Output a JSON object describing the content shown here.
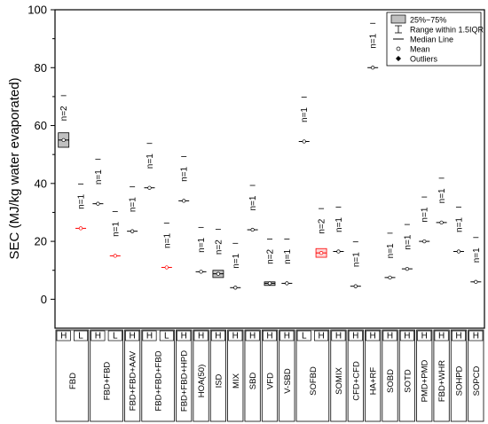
{
  "chart_data": {
    "type": "box",
    "ylabel": "SEC (MJ/kg water evaporated)",
    "ylim": [
      -10,
      100
    ],
    "yticks": [
      0,
      20,
      40,
      60,
      80,
      100
    ],
    "legend": {
      "placement": "top-right",
      "entries": [
        "25%~75%",
        "Range within 1.5IQR",
        "Median Line",
        "Mean",
        "Outliers"
      ]
    },
    "categories": [
      {
        "name": "FBD",
        "modes": [
          "H",
          "L"
        ]
      },
      {
        "name": "FBD+FBD",
        "modes": [
          "H",
          "L"
        ]
      },
      {
        "name": "FBD+FBD+AAV",
        "modes": [
          "H"
        ]
      },
      {
        "name": "FBD+FBD+FBD",
        "modes": [
          "H",
          "L"
        ]
      },
      {
        "name": "FBD+FBD+HPD",
        "modes": [
          "H"
        ]
      },
      {
        "name": "HOA(50)",
        "modes": [
          "H"
        ]
      },
      {
        "name": "ISD",
        "modes": [
          "H"
        ]
      },
      {
        "name": "MIX",
        "modes": [
          "H"
        ]
      },
      {
        "name": "SBD",
        "modes": [
          "H"
        ]
      },
      {
        "name": "VFD",
        "modes": [
          "H"
        ]
      },
      {
        "name": "V-SBD",
        "modes": [
          "H"
        ]
      },
      {
        "name": "SOFBD",
        "modes": [
          "L",
          "H"
        ]
      },
      {
        "name": "SOMIX",
        "modes": [
          "H"
        ]
      },
      {
        "name": "CFD+CFD",
        "modes": [
          "H"
        ]
      },
      {
        "name": "HA+RF",
        "modes": [
          "H"
        ]
      },
      {
        "name": "SOBD",
        "modes": [
          "H"
        ]
      },
      {
        "name": "SOTD",
        "modes": [
          "H"
        ]
      },
      {
        "name": "PMD+PMD",
        "modes": [
          "H"
        ]
      },
      {
        "name": "FBD+WHR",
        "modes": [
          "H"
        ]
      },
      {
        "name": "SOHPD",
        "modes": [
          "H"
        ]
      },
      {
        "name": "SOPCD",
        "modes": [
          "H"
        ]
      }
    ],
    "series": [
      {
        "x": 1,
        "mode": "H",
        "n": "n=2",
        "value": 55,
        "q1": 52.5,
        "q3": 57.5,
        "color": "#000000"
      },
      {
        "x": 2,
        "mode": "L",
        "n": "n=1",
        "value": 24.5,
        "color": "#ff0000"
      },
      {
        "x": 3,
        "mode": "H",
        "n": "n=1",
        "value": 33,
        "color": "#000000"
      },
      {
        "x": 4,
        "mode": "L",
        "n": "n=1",
        "value": 15,
        "color": "#ff0000"
      },
      {
        "x": 5,
        "mode": "H",
        "n": "n=1",
        "value": 23.5,
        "color": "#000000"
      },
      {
        "x": 6,
        "mode": "H",
        "n": "n=1",
        "value": 38.5,
        "color": "#000000"
      },
      {
        "x": 7,
        "mode": "L",
        "n": "n=1",
        "value": 11,
        "color": "#ff0000"
      },
      {
        "x": 8,
        "mode": "H",
        "n": "n=1",
        "value": 34,
        "color": "#000000"
      },
      {
        "x": 9,
        "mode": "H",
        "n": "n=1",
        "value": 9.5,
        "color": "#000000"
      },
      {
        "x": 10,
        "mode": "H",
        "n": "n=2",
        "value": 8.8,
        "q1": 7.5,
        "q3": 10,
        "color": "#000000"
      },
      {
        "x": 11,
        "mode": "H",
        "n": "n=1",
        "value": 4,
        "color": "#000000"
      },
      {
        "x": 12,
        "mode": "H",
        "n": "n=1",
        "value": 24,
        "color": "#000000"
      },
      {
        "x": 13,
        "mode": "H",
        "n": "n=2",
        "value": 5.5,
        "q1": 5,
        "q3": 6,
        "color": "#000000"
      },
      {
        "x": 14,
        "mode": "H",
        "n": "n=1",
        "value": 5.5,
        "color": "#000000"
      },
      {
        "x": 15,
        "mode": "L",
        "n": "n=1",
        "value": 54.5,
        "color": "#000000"
      },
      {
        "x": 16,
        "mode": "H",
        "n": "n=2",
        "value": 16,
        "q1": 14.5,
        "q3": 17.5,
        "color": "#ff0000"
      },
      {
        "x": 17,
        "mode": "H",
        "n": "n=1",
        "value": 16.5,
        "color": "#000000"
      },
      {
        "x": 18,
        "mode": "H",
        "n": "n=1",
        "value": 4.5,
        "color": "#000000"
      },
      {
        "x": 19,
        "mode": "H",
        "n": "n=1",
        "value": 80,
        "color": "#000000"
      },
      {
        "x": 20,
        "mode": "H",
        "n": "n=1",
        "value": 7.5,
        "color": "#000000"
      },
      {
        "x": 21,
        "mode": "H",
        "n": "n=1",
        "value": 10.5,
        "color": "#000000"
      },
      {
        "x": 22,
        "mode": "H",
        "n": "n=1",
        "value": 20,
        "color": "#000000"
      },
      {
        "x": 23,
        "mode": "H",
        "n": "n=1",
        "value": 26.5,
        "color": "#000000"
      },
      {
        "x": 24,
        "mode": "H",
        "n": "n=1",
        "value": 16.5,
        "color": "#000000"
      },
      {
        "x": 25,
        "mode": "H",
        "n": "n=1",
        "value": 6,
        "color": "#000000"
      }
    ]
  }
}
